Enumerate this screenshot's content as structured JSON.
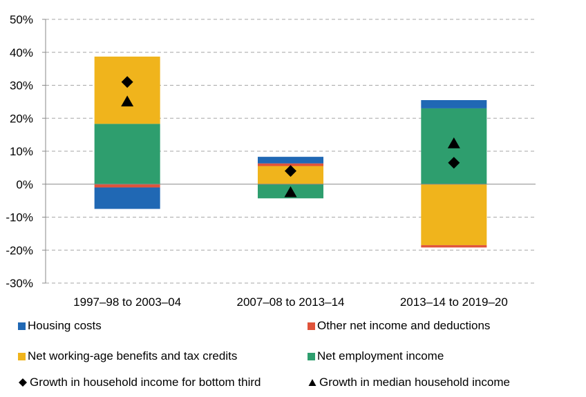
{
  "chart_data": {
    "type": "bar",
    "stacked": true,
    "title": "",
    "xlabel": "",
    "ylabel": "",
    "ylim": [
      -30,
      50
    ],
    "yticks": [
      -30,
      -20,
      -10,
      0,
      10,
      20,
      30,
      40,
      50
    ],
    "ytick_labels": [
      "-30%",
      "-20%",
      "-10%",
      "0%",
      "10%",
      "20%",
      "30%",
      "40%",
      "50%"
    ],
    "grid": true,
    "legend_position": "bottom",
    "categories": [
      "1997–98 to 2003–04",
      "2007–08 to 2013–14",
      "2013–14 to 2019–20"
    ],
    "series": [
      {
        "name": "Net employment income",
        "color": "#2e9e6e",
        "values": [
          18.3,
          -4.3,
          23.0
        ]
      },
      {
        "name": "Net working-age benefits and tax credits",
        "color": "#f0b41c",
        "values": [
          20.4,
          5.5,
          -18.5
        ]
      },
      {
        "name": "Other net income and deductions",
        "color": "#e0533a",
        "values": [
          -1.0,
          0.8,
          -0.7
        ]
      },
      {
        "name": "Housing costs",
        "color": "#2068b4",
        "values": [
          -6.5,
          2.0,
          2.5
        ]
      }
    ],
    "markers": [
      {
        "name": "Growth in household income for bottom third",
        "shape": "diamond",
        "color": "#000000",
        "values": [
          31.0,
          4.0,
          6.5
        ]
      },
      {
        "name": "Growth in median household income",
        "shape": "triangle",
        "color": "#000000",
        "values": [
          25.0,
          -2.5,
          12.3
        ]
      }
    ],
    "legend": [
      {
        "name": "Housing costs",
        "kind": "square",
        "color": "#2068b4"
      },
      {
        "name": "Other net income and deductions",
        "kind": "square",
        "color": "#e0533a"
      },
      {
        "name": "Net working-age benefits and tax credits",
        "kind": "square",
        "color": "#f0b41c"
      },
      {
        "name": "Net employment income",
        "kind": "square",
        "color": "#2e9e6e"
      },
      {
        "name": "Growth in household income for bottom third",
        "kind": "diamond",
        "color": "#000000"
      },
      {
        "name": "Growth in median household income",
        "kind": "triangle",
        "color": "#000000"
      }
    ]
  }
}
